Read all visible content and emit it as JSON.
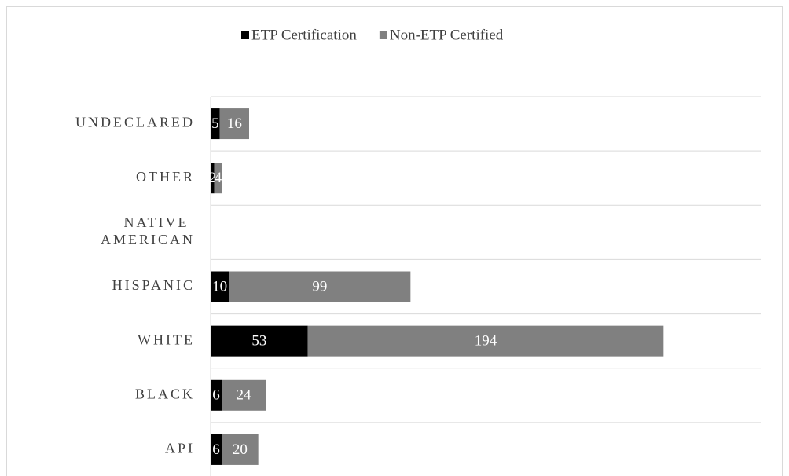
{
  "chart_data": {
    "type": "stacked_barh",
    "categories": [
      "UNDECLARED",
      "OTHER",
      "NATIVE AMERICAN",
      "HISPANIC",
      "WHITE",
      "BLACK",
      "API"
    ],
    "series": [
      {
        "name": "ETP Certification",
        "color": "#000000",
        "values": [
          5,
          2,
          0,
          10,
          53,
          6,
          6
        ]
      },
      {
        "name": "Non-ETP Certified",
        "color": "#808080",
        "values": [
          16,
          4,
          0,
          99,
          194,
          24,
          20
        ]
      }
    ],
    "xlim": [
      0,
      300
    ],
    "legend": "top",
    "grid": true
  }
}
